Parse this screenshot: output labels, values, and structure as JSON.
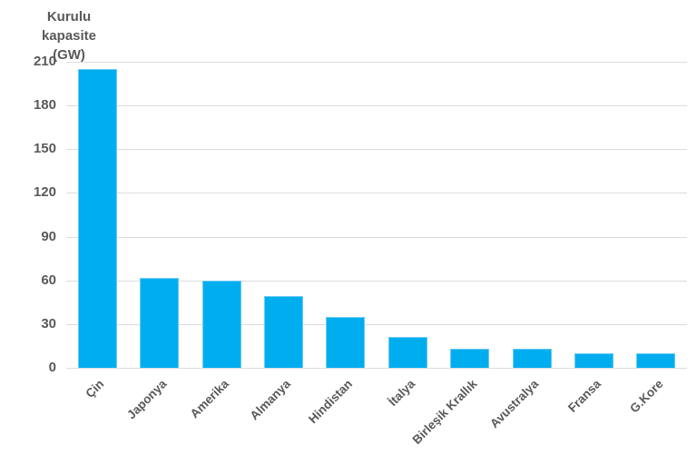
{
  "chart_data": {
    "type": "bar",
    "title": "Kurulu kapasite (GW)",
    "title_lines": [
      "Kurulu kapasite",
      "(GW)"
    ],
    "ylabel": "Kurulu kapasite (GW)",
    "xlabel": "",
    "categories": [
      "Çin",
      "Japonya",
      "Amerika",
      "Almanya",
      "Hindistan",
      "İtalya",
      "Birleşik Krallık",
      "Avustralya",
      "Fransa",
      "G.Kore"
    ],
    "values": [
      205,
      62,
      60,
      49,
      35,
      21,
      13,
      13,
      10,
      10
    ],
    "ylim": [
      0,
      210
    ],
    "ytick_step": 30,
    "yticks": [
      210,
      180,
      150,
      120,
      90,
      60,
      30,
      0
    ],
    "grid": true,
    "legend": false,
    "colors": {
      "bar": "#00aeef",
      "bar_border": "#6cc9f2",
      "grid": "#dcdcdc",
      "text": "#595959",
      "background": "#ffffff"
    }
  }
}
